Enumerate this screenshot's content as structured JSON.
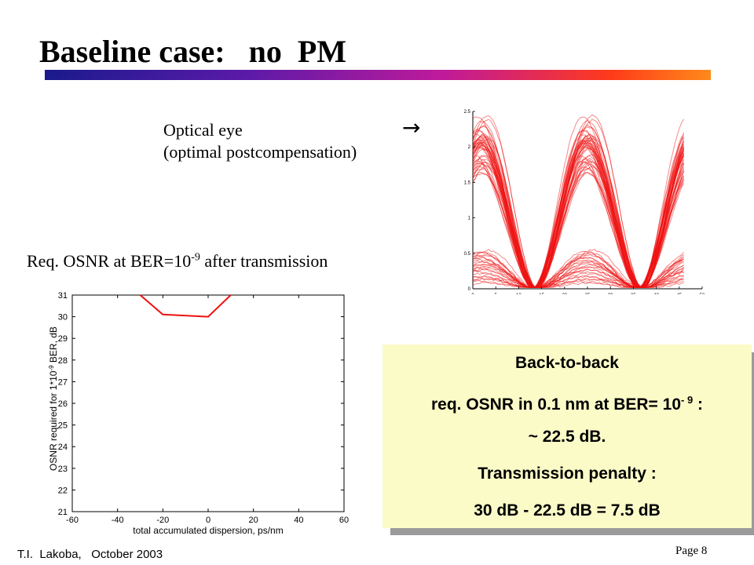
{
  "title": "Baseline case:   no  PM",
  "eye_label": {
    "line1": "Optical eye",
    "line2": "(optimal postcompensation)",
    "arrow": "→"
  },
  "osnr_label": {
    "prefix": "Req. OSNR at BER=10",
    "exponent": "-9",
    "suffix": " after transmission"
  },
  "info_box": {
    "line1": "Back-to-back",
    "line2_prefix": "req. OSNR in 0.1 nm at BER= 10",
    "line2_exponent": "- 9",
    "line2_suffix": " :",
    "line3": "~ 22.5 dB.",
    "line4": "Transmission penalty :",
    "line5": "30 dB - 22.5 dB = 7.5 dB"
  },
  "footer": {
    "author": "T.I.  Lakoba,   October 2003",
    "page": "Page 8"
  },
  "colors": {
    "trace": "#ee1111",
    "box_background": "#fbfbc8"
  },
  "chart_data": [
    {
      "type": "line",
      "title": "",
      "xlabel": "",
      "ylabel": "",
      "xlim": [
        0,
        50
      ],
      "ylim": [
        0,
        2.5
      ],
      "xticks": [
        "0",
        "5",
        "10",
        "15",
        "20",
        "25",
        "30",
        "35",
        "40",
        "45",
        "50"
      ],
      "yticks": [
        "0",
        "0.5",
        "1",
        "1.5",
        "2",
        "2.5"
      ],
      "eye": {
        "period": 23,
        "first_null": 13.5,
        "x_end": 46,
        "high_amplitude_range": [
          1.6,
          2.45
        ],
        "low_amplitude_range": [
          0.08,
          0.55
        ],
        "trace_count": 70
      }
    },
    {
      "type": "line",
      "title": "",
      "xlabel": "total accumulated dispersion,  ps/nm",
      "ylabel": "OSNR required for 1*10^-9 BER,  dB",
      "xlim": [
        -60,
        60
      ],
      "ylim": [
        21,
        31
      ],
      "xticks": [
        "-60",
        "-40",
        "-20",
        "0",
        "20",
        "40",
        "60"
      ],
      "yticks": [
        "21",
        "22",
        "23",
        "24",
        "25",
        "26",
        "27",
        "28",
        "29",
        "30",
        "31"
      ],
      "series": [
        {
          "x": [
            -30,
            -20,
            0,
            10
          ],
          "y": [
            31.0,
            30.1,
            30.0,
            31.0
          ]
        }
      ]
    }
  ]
}
